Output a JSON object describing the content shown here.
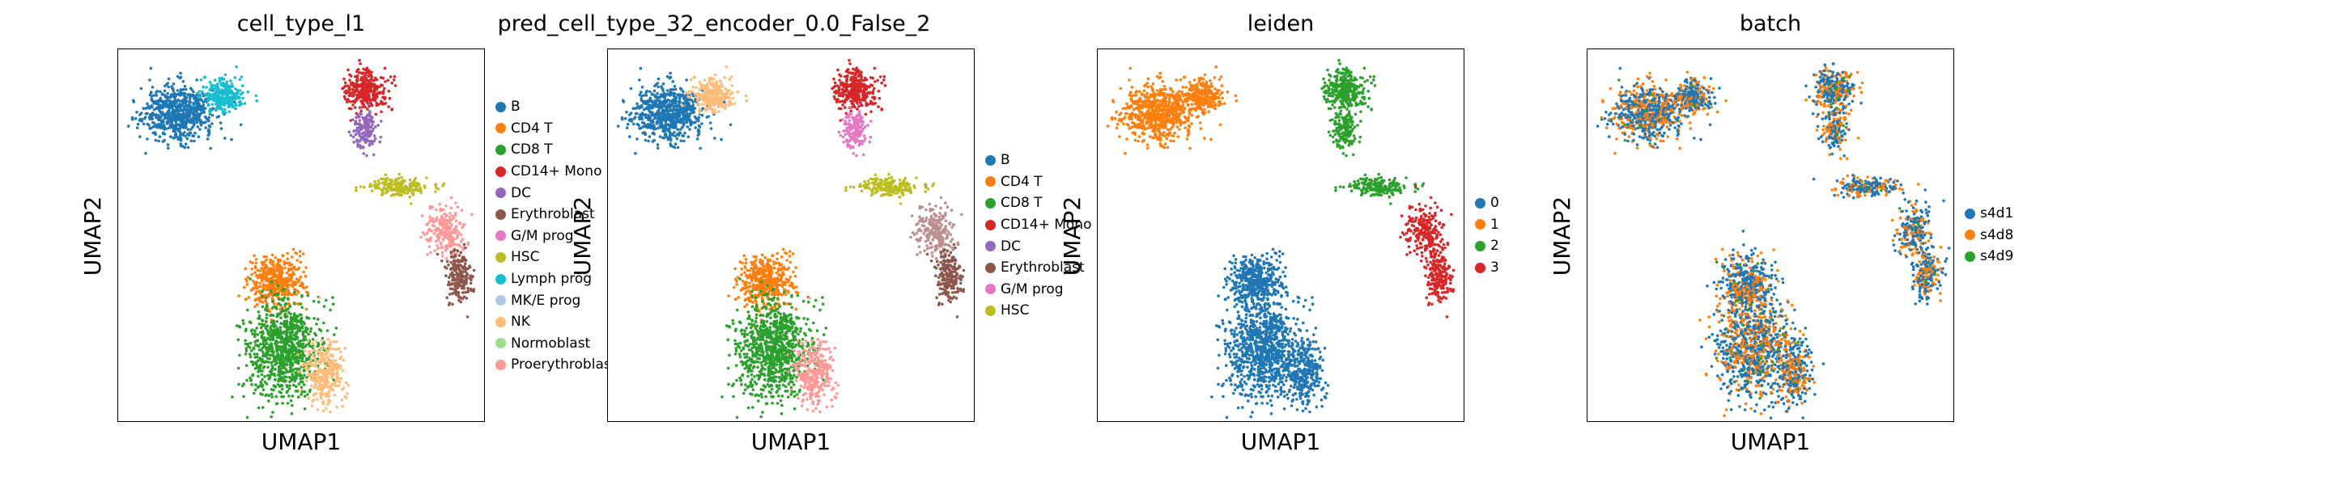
{
  "chart_data": [
    {
      "type": "scatter",
      "title": "cell_type_l1",
      "xlabel": "UMAP1",
      "ylabel": "UMAP2",
      "legend_placement": "right",
      "categories": [
        "B",
        "CD4 T",
        "CD8 T",
        "CD14+ Mono",
        "DC",
        "Erythroblast",
        "G/M prog",
        "HSC",
        "Lymph prog",
        "MK/E prog",
        "NK",
        "Normoblast",
        "Proerythroblast"
      ],
      "colors": [
        "#1f77b4",
        "#ff7f0e",
        "#2ca02c",
        "#d62728",
        "#9467bd",
        "#8c564b",
        "#e377c2",
        "#bcbd22",
        "#17becf",
        "#aec7e8",
        "#ffbb78",
        "#98df8a",
        "#ff9896"
      ]
    },
    {
      "type": "scatter",
      "title": "pred_cell_type_32_encoder_0.0_False_2",
      "xlabel": "UMAP1",
      "ylabel": "UMAP2",
      "legend_placement": "right",
      "categories": [
        "B",
        "CD4 T",
        "CD8 T",
        "CD14+ Mono",
        "DC",
        "Erythroblast",
        "G/M prog",
        "HSC"
      ],
      "colors": [
        "#1f77b4",
        "#ff7f0e",
        "#2ca02c",
        "#d62728",
        "#9467bd",
        "#8c564b",
        "#e377c2",
        "#bcbd22"
      ]
    },
    {
      "type": "scatter",
      "title": "leiden",
      "xlabel": "UMAP1",
      "ylabel": "UMAP2",
      "legend_placement": "right",
      "categories": [
        "0",
        "1",
        "2",
        "3"
      ],
      "colors": [
        "#1f77b4",
        "#ff7f0e",
        "#2ca02c",
        "#d62728"
      ]
    },
    {
      "type": "scatter",
      "title": "batch",
      "xlabel": "UMAP1",
      "ylabel": "UMAP2",
      "legend_placement": "right",
      "categories": [
        "s4d1",
        "s4d8",
        "s4d9"
      ],
      "colors": [
        "#1f77b4",
        "#ff7f0e",
        "#2ca02c"
      ]
    }
  ]
}
